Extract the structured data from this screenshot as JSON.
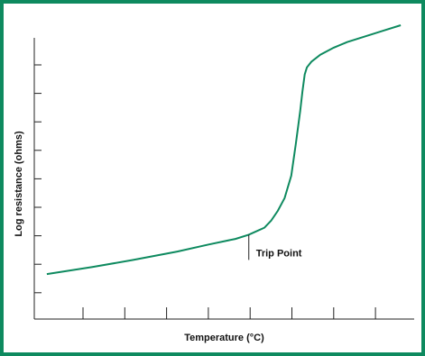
{
  "colors": {
    "frame": "#0e8a5f",
    "curve": "#0e8a5f",
    "axis": "#222222"
  },
  "chart_data": {
    "type": "line",
    "title": "",
    "xlabel": "Temperature (°C)",
    "ylabel": "Log resistance (ohms)",
    "x_tick_count": 8,
    "y_tick_count": 9,
    "x_ticks_labeled": false,
    "y_ticks_labeled": false,
    "grid": false,
    "xlim": [
      0,
      8.5
    ],
    "ylim": [
      0,
      10
    ],
    "series": [
      {
        "values_x": [
          0.28,
          1.3,
          2.2,
          3.2,
          3.9,
          4.5,
          4.8,
          5.15,
          5.3,
          5.45,
          5.6,
          5.75,
          5.85,
          5.95,
          6.0,
          6.05,
          6.1,
          6.2,
          6.4,
          6.7,
          7.0,
          7.4,
          7.8,
          8.2
        ],
        "values_y": [
          1.6,
          1.85,
          2.1,
          2.4,
          2.65,
          2.85,
          3.0,
          3.25,
          3.5,
          3.85,
          4.3,
          5.1,
          6.2,
          7.4,
          8.1,
          8.7,
          8.95,
          9.15,
          9.4,
          9.65,
          9.85,
          10.05,
          10.25,
          10.45
        ]
      }
    ],
    "annotations": [
      {
        "text": "Trip Point",
        "x": 4.8,
        "y": 3.0
      }
    ]
  }
}
